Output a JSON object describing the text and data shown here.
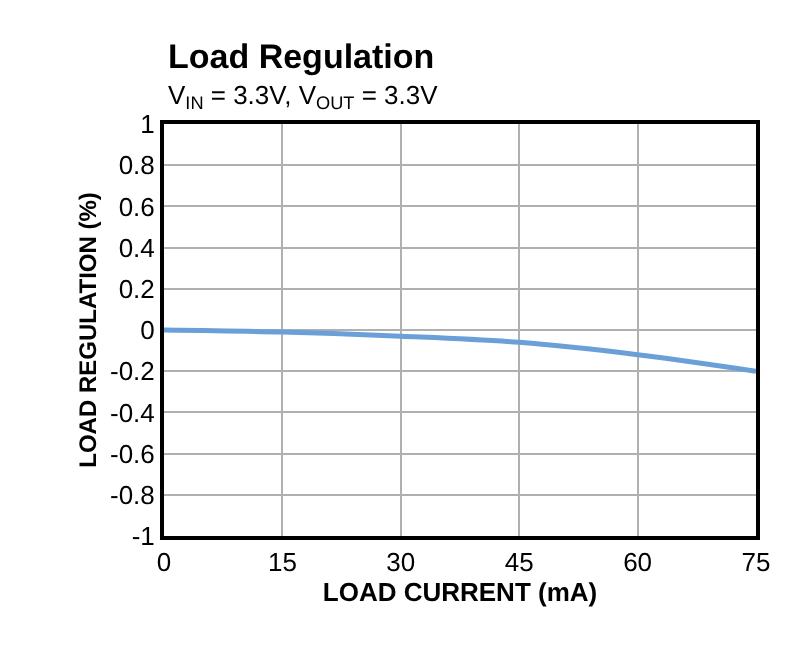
{
  "chart_data": {
    "type": "line",
    "title": "Load Regulation",
    "subtitle": "V$_{IN}$ = 3.3V, V$_{OUT}$ = 3.3V",
    "xlabel": "LOAD CURRENT (mA)",
    "ylabel": "LOAD REGULATION (%)",
    "x": [
      0,
      15,
      30,
      45,
      60,
      75
    ],
    "series": [
      {
        "color": "#6a9fd8",
        "values": [
          0,
          -0.01,
          -0.03,
          -0.06,
          -0.12,
          -0.2
        ]
      }
    ],
    "xlim": [
      0,
      75
    ],
    "xticks": [
      0,
      15,
      30,
      45,
      60,
      75
    ],
    "ylim": [
      -1,
      1
    ],
    "yticks": [
      1,
      0.8,
      0.6,
      0.4,
      0.2,
      0,
      -0.2,
      -0.4,
      -0.6,
      -0.8,
      -1
    ],
    "grid": true,
    "marker": "none",
    "line_style": "solid"
  }
}
